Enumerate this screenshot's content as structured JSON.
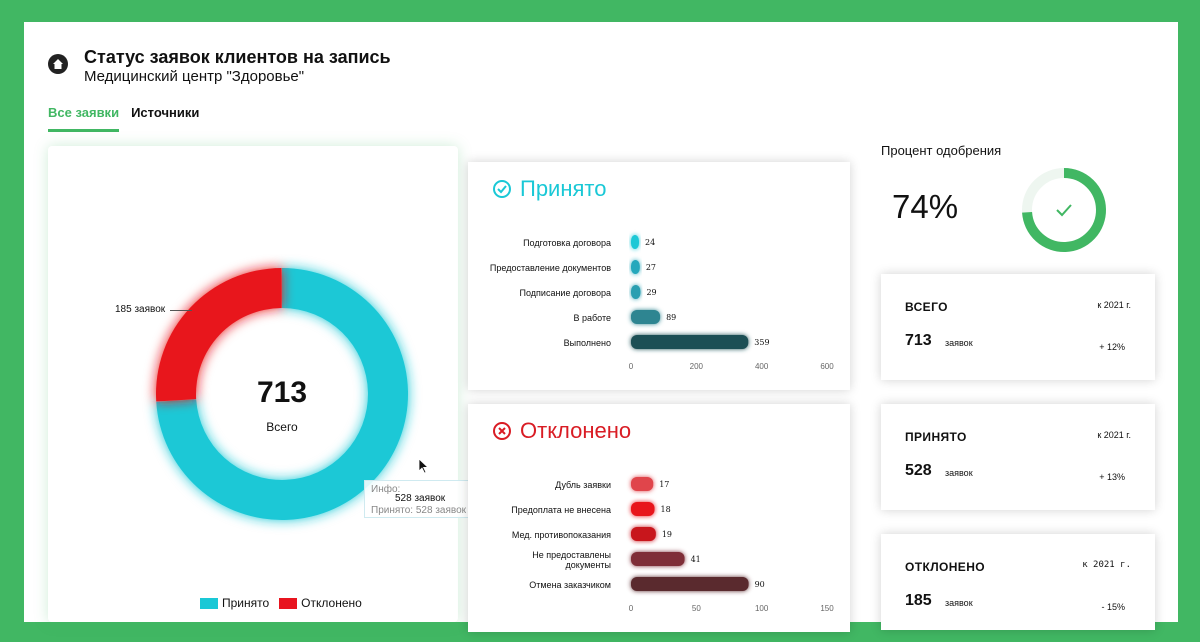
{
  "header": {
    "title": "Статус заявок клиентов на запись",
    "subtitle": "Медицинский центр \"Здоровье\""
  },
  "tabs": [
    {
      "label": "Все заявки",
      "active": true
    },
    {
      "label": "Источники",
      "active": false
    }
  ],
  "donut": {
    "total": "713",
    "total_label": "Всего",
    "callout": "185 заявок",
    "tooltip_line1": "Инфо:",
    "tooltip_line2": "Принято: 528 заявок",
    "tooltip_overlay": "528 заявок",
    "legend": [
      {
        "label": "Принято",
        "color": "#1ac8d6"
      },
      {
        "label": "Отклонено",
        "color": "#e8141f"
      }
    ]
  },
  "accepted": {
    "title": "Принято",
    "color": "#1ac8d6"
  },
  "rejected": {
    "title": "Отклонено",
    "color": "#d91c24"
  },
  "approval": {
    "label": "Процент одобрения",
    "value": "74%",
    "fraction": 0.74,
    "color": "#41b763"
  },
  "stats": [
    {
      "title": "ВСЕГО",
      "year": "к 2021 г.",
      "number": "713",
      "unit": "заявок",
      "change": "+ 12%"
    },
    {
      "title": "ПРИНЯТО",
      "year": "к 2021 г.",
      "number": "528",
      "unit": "заявок",
      "change": "+ 13%"
    },
    {
      "title": "ОТКЛОНЕНО",
      "year": "к 2021 г.",
      "number": "185",
      "unit": "заявок",
      "change": "- 15%"
    }
  ],
  "chart_data": [
    {
      "type": "pie",
      "categories": [
        "Принято",
        "Отклонено"
      ],
      "values": [
        528,
        185
      ],
      "colors": [
        "#1ac8d6",
        "#e8141f"
      ],
      "legend": "bottom"
    },
    {
      "type": "bar",
      "title": "Принято",
      "categories": [
        "Подготовка договора",
        "Предоставление документов",
        "Подписание договора",
        "В работе",
        "Выполнено"
      ],
      "values": [
        24,
        27,
        29,
        89,
        359
      ],
      "colors": [
        "#1ac8d6",
        "#25a8bc",
        "#2a9fb1",
        "#2d8591",
        "#1f4f54"
      ],
      "xticks": [
        "0",
        "200",
        "400",
        "600"
      ],
      "xlim": [
        0,
        600
      ]
    },
    {
      "type": "bar",
      "title": "Отклонено",
      "categories": [
        "Дубль заявки",
        "Предоплата не внесена",
        "Мед. противопоказания",
        "Не предоставлены документы",
        "Отмена заказчиком"
      ],
      "values": [
        17,
        18,
        19,
        41,
        90
      ],
      "colors": [
        "#e0454c",
        "#e8141f",
        "#c8121c",
        "#7f2f37",
        "#5a2a2e"
      ],
      "xticks": [
        "0",
        "50",
        "100",
        "150"
      ],
      "xlim": [
        0,
        150
      ]
    }
  ]
}
